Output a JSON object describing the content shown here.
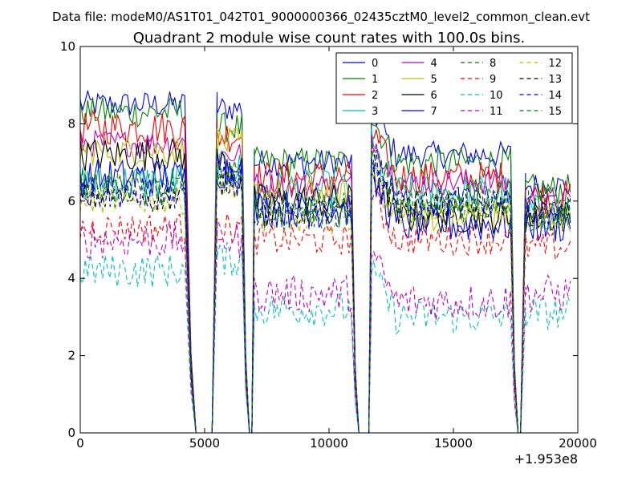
{
  "header": {
    "data_file": "Data file: modeM0/AS1T01_042T01_9000000366_02435cztM0_level2_common_clean.evt"
  },
  "chart_data": {
    "type": "line",
    "title": "Quadrant 2 module wise count rates with 100.0s bins.",
    "xlabel": "",
    "ylabel": "",
    "x_offset_label": "+1.953e8",
    "xlim": [
      0,
      20000
    ],
    "ylim": [
      0,
      10
    ],
    "xticks": [
      0,
      5000,
      10000,
      15000,
      20000
    ],
    "xtick_labels": [
      "0",
      "5000",
      "10000",
      "15000",
      "20000"
    ],
    "yticks": [
      0,
      2,
      4,
      6,
      8,
      10
    ],
    "ytick_labels": [
      "0",
      "2",
      "4",
      "6",
      "8",
      "10"
    ],
    "grid": false,
    "legend_position": "top-right",
    "legend_columns": 4,
    "segments": [
      [
        0,
        4200
      ],
      [
        5500,
        6500
      ],
      [
        7000,
        10900
      ],
      [
        11700,
        17300
      ],
      [
        17900,
        19700
      ]
    ],
    "gaps": [
      [
        4200,
        4450,
        4650,
        5300,
        5500
      ],
      [
        6500,
        6650,
        6800,
        6900,
        7000
      ],
      [
        10900,
        11050,
        11200,
        11600,
        11700
      ],
      [
        17300,
        17450,
        17600,
        17700,
        17900
      ]
    ],
    "series": [
      {
        "name": "0",
        "color": "#0000ff",
        "dash": "solid",
        "levels": [
          8.5,
          8.4,
          7.0,
          7.2,
          6.4
        ]
      },
      {
        "name": "1",
        "color": "#008000",
        "dash": "solid",
        "levels": [
          8.3,
          7.9,
          7.0,
          7.0,
          6.3
        ]
      },
      {
        "name": "2",
        "color": "#ff0000",
        "dash": "solid",
        "levels": [
          7.9,
          7.7,
          6.6,
          6.6,
          6.1
        ]
      },
      {
        "name": "3",
        "color": "#00bfbf",
        "dash": "solid",
        "levels": [
          6.5,
          6.8,
          6.3,
          6.2,
          5.7
        ]
      },
      {
        "name": "4",
        "color": "#bf00bf",
        "dash": "solid",
        "levels": [
          7.5,
          7.2,
          6.4,
          6.5,
          6.0
        ]
      },
      {
        "name": "5",
        "color": "#bfbf00",
        "dash": "solid",
        "levels": [
          7.3,
          7.5,
          6.2,
          5.6,
          5.6
        ]
      },
      {
        "name": "6",
        "color": "#000000",
        "dash": "solid",
        "levels": [
          7.2,
          7.0,
          6.0,
          5.6,
          5.6
        ]
      },
      {
        "name": "7",
        "color": "#0000ff",
        "dash": "solid",
        "levels": [
          6.6,
          6.8,
          5.8,
          5.4,
          5.4
        ]
      },
      {
        "name": "8",
        "color": "#008000",
        "dash": "dashed",
        "levels": [
          6.4,
          6.7,
          5.6,
          5.8,
          5.5
        ]
      },
      {
        "name": "9",
        "color": "#ff0000",
        "dash": "dashed",
        "levels": [
          5.3,
          5.3,
          5.0,
          5.0,
          4.8
        ]
      },
      {
        "name": "10",
        "color": "#00bfbf",
        "dash": "dashed",
        "levels": [
          4.2,
          4.5,
          3.2,
          3.0,
          3.1
        ]
      },
      {
        "name": "11",
        "color": "#bf00bf",
        "dash": "dashed",
        "levels": [
          5.0,
          5.0,
          3.6,
          3.4,
          3.6
        ]
      },
      {
        "name": "12",
        "color": "#bfbf00",
        "dash": "dashed",
        "levels": [
          6.0,
          6.4,
          5.5,
          5.7,
          5.6
        ]
      },
      {
        "name": "13",
        "color": "#000000",
        "dash": "dashed",
        "levels": [
          6.1,
          6.5,
          5.7,
          5.9,
          5.7
        ]
      },
      {
        "name": "14",
        "color": "#0000ff",
        "dash": "dashed",
        "levels": [
          6.2,
          6.6,
          5.7,
          6.0,
          5.8
        ]
      },
      {
        "name": "15",
        "color": "#008000",
        "dash": "dashed",
        "levels": [
          6.3,
          6.7,
          5.8,
          6.1,
          5.9
        ]
      }
    ]
  }
}
